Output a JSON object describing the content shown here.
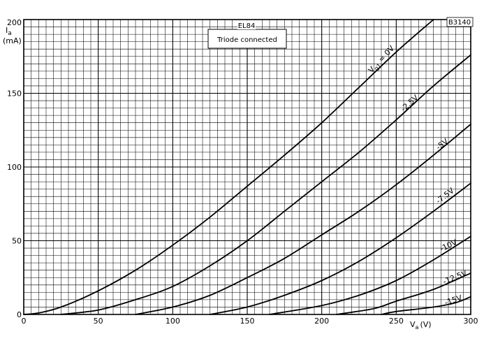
{
  "chart_data": {
    "type": "line",
    "title": "EL84",
    "subtitle": "Triode connected",
    "code": "B3140",
    "ylabel_symbol": "I",
    "ylabel_subscript": "a",
    "ylabel_unit": "(mA)",
    "xlabel_symbol": "V",
    "xlabel_subscript": "a",
    "xlabel_unit": "(V)",
    "xlim": [
      0,
      300
    ],
    "ylim": [
      0,
      200
    ],
    "x_ticks": [
      "0",
      "50",
      "100",
      "150",
      "200",
      "250",
      "300"
    ],
    "y_ticks": [
      "0",
      "50",
      "100",
      "150",
      "200"
    ],
    "grid": true,
    "series": [
      {
        "name": "Vg1 = 0V",
        "x": [
          0,
          10,
          25,
          50,
          75,
          100,
          125,
          150,
          175,
          200,
          225,
          250,
          275
        ],
        "y": [
          0,
          1,
          5,
          16,
          30,
          47,
          66,
          87,
          108,
          130,
          154,
          178,
          200
        ]
      },
      {
        "name": "-2.5V",
        "x": [
          25,
          50,
          75,
          100,
          125,
          150,
          175,
          200,
          225,
          250,
          275,
          300
        ],
        "y": [
          0,
          3,
          10,
          19,
          33,
          50,
          70,
          90,
          110,
          132,
          155,
          176
        ]
      },
      {
        "name": "-5V",
        "x": [
          75,
          100,
          125,
          150,
          175,
          200,
          225,
          250,
          275,
          300
        ],
        "y": [
          0,
          5,
          13,
          25,
          38,
          54,
          70,
          88,
          108,
          129
        ]
      },
      {
        "name": "-7.5V",
        "x": [
          125,
          150,
          175,
          200,
          225,
          250,
          275,
          300
        ],
        "y": [
          0,
          5,
          13,
          23,
          36,
          52,
          70,
          89
        ]
      },
      {
        "name": "-10V",
        "x": [
          165,
          200,
          225,
          250,
          275,
          300
        ],
        "y": [
          0,
          6,
          13,
          23,
          37,
          53
        ]
      },
      {
        "name": "-12.5V",
        "x": [
          210,
          235,
          250,
          275,
          300
        ],
        "y": [
          0,
          4,
          9,
          17,
          28
        ]
      },
      {
        "name": "-15V",
        "x": [
          240,
          250,
          275,
          290,
          300
        ],
        "y": [
          0,
          2,
          5,
          8,
          12
        ]
      }
    ],
    "curve_labels": [
      {
        "prefix": "V",
        "sub": "g1",
        "suffix": " = 0V"
      },
      {
        "prefix": "-2.5V",
        "sub": "",
        "suffix": ""
      },
      {
        "prefix": "-5V",
        "sub": "",
        "suffix": ""
      },
      {
        "prefix": "-7.5V",
        "sub": "",
        "suffix": ""
      },
      {
        "prefix": "-10V",
        "sub": "",
        "suffix": ""
      },
      {
        "prefix": "-12.5V",
        "sub": "",
        "suffix": ""
      },
      {
        "prefix": "-15V",
        "sub": "",
        "suffix": ""
      }
    ]
  }
}
